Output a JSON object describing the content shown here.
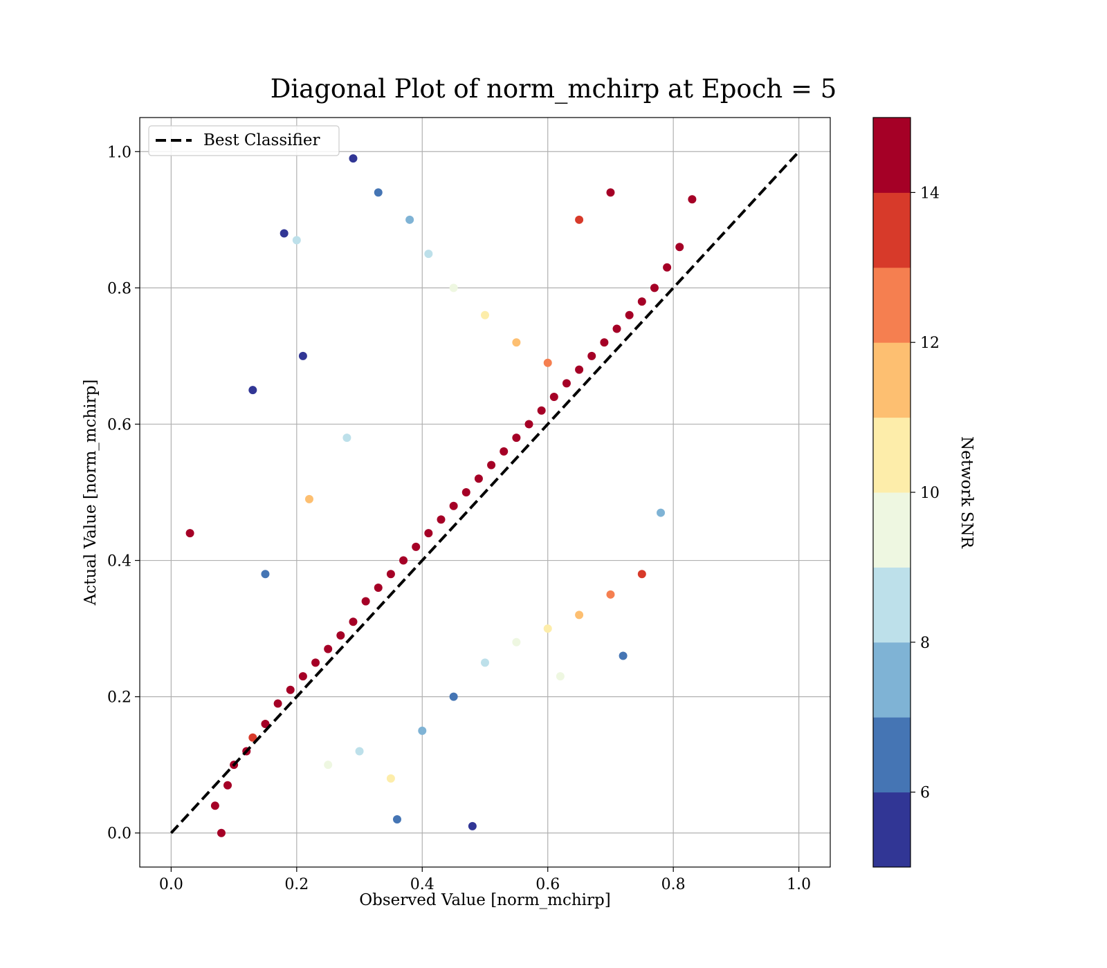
{
  "chart_data": {
    "type": "scatter",
    "title": "Diagonal Plot of norm_mchirp at Epoch = 5",
    "xlabel": "Observed Value [norm_mchirp]",
    "ylabel": "Actual Value [norm_mchirp]",
    "xlim": [
      -0.05,
      1.05
    ],
    "ylim": [
      -0.05,
      1.05
    ],
    "xticks": [
      "0.0",
      "0.2",
      "0.4",
      "0.6",
      "0.8",
      "1.0"
    ],
    "yticks": [
      "0.0",
      "0.2",
      "0.4",
      "0.6",
      "0.8",
      "1.0"
    ],
    "grid": true,
    "legend": {
      "placement": "top-left",
      "entries": [
        "Best Classifier"
      ]
    },
    "reference_line": {
      "name": "Best Classifier",
      "style": "dashed",
      "color": "#000000",
      "x": [
        0,
        1
      ],
      "y": [
        0,
        1
      ]
    },
    "colorbar": {
      "label": "Network SNR",
      "range": [
        5,
        15
      ],
      "ticks": [
        "6",
        "8",
        "10",
        "12",
        "14"
      ],
      "colors": [
        "#313695",
        "#4575b4",
        "#7fb3d5",
        "#bde0ea",
        "#eef7e1",
        "#fdedaa",
        "#fdbf71",
        "#f57f50",
        "#d73a2a",
        "#a50026"
      ]
    },
    "series": [
      {
        "points_description_note_free": true,
        "x": [
          0.07,
          0.09,
          0.1,
          0.12,
          0.13,
          0.15,
          0.17,
          0.19,
          0.21,
          0.23,
          0.25,
          0.27,
          0.29,
          0.31,
          0.33,
          0.35,
          0.37,
          0.39,
          0.41,
          0.43,
          0.45,
          0.47,
          0.49,
          0.51,
          0.53,
          0.55,
          0.57,
          0.59,
          0.61,
          0.63,
          0.65,
          0.67,
          0.69,
          0.71,
          0.73,
          0.75,
          0.77,
          0.79,
          0.81,
          0.83,
          0.2,
          0.18,
          0.13,
          0.21,
          0.03,
          0.29,
          0.33,
          0.38,
          0.41,
          0.45,
          0.5,
          0.55,
          0.6,
          0.65,
          0.7,
          0.25,
          0.3,
          0.35,
          0.4,
          0.45,
          0.5,
          0.55,
          0.6,
          0.65,
          0.7,
          0.75,
          0.15,
          0.22,
          0.28,
          0.72,
          0.78,
          0.08,
          0.48,
          0.36,
          0.62
        ],
        "y": [
          0.04,
          0.07,
          0.1,
          0.12,
          0.14,
          0.16,
          0.19,
          0.21,
          0.23,
          0.25,
          0.27,
          0.29,
          0.31,
          0.34,
          0.36,
          0.38,
          0.4,
          0.42,
          0.44,
          0.46,
          0.48,
          0.5,
          0.52,
          0.54,
          0.56,
          0.58,
          0.6,
          0.62,
          0.64,
          0.66,
          0.68,
          0.7,
          0.72,
          0.74,
          0.76,
          0.78,
          0.8,
          0.83,
          0.86,
          0.93,
          0.87,
          0.88,
          0.65,
          0.7,
          0.44,
          0.99,
          0.94,
          0.9,
          0.85,
          0.8,
          0.76,
          0.72,
          0.69,
          0.9,
          0.94,
          0.1,
          0.12,
          0.08,
          0.15,
          0.2,
          0.25,
          0.28,
          0.3,
          0.32,
          0.35,
          0.38,
          0.38,
          0.49,
          0.58,
          0.26,
          0.47,
          0.0,
          0.01,
          0.02,
          0.23
        ],
        "snr": [
          14,
          14,
          15,
          14,
          13,
          15,
          14,
          15,
          14,
          15,
          14,
          15,
          14,
          15,
          14,
          15,
          15,
          14,
          15,
          15,
          14,
          15,
          15,
          14,
          15,
          15,
          14,
          15,
          15,
          14,
          15,
          15,
          14,
          15,
          15,
          14,
          15,
          15,
          14,
          14,
          8,
          5,
          5,
          5,
          14,
          5,
          6,
          7,
          8,
          9,
          10,
          11,
          12,
          13,
          14,
          9,
          8,
          10,
          7,
          6,
          8,
          9,
          10,
          11,
          12,
          13,
          6,
          11,
          8,
          6,
          7,
          14,
          5,
          6,
          9
        ]
      }
    ]
  }
}
